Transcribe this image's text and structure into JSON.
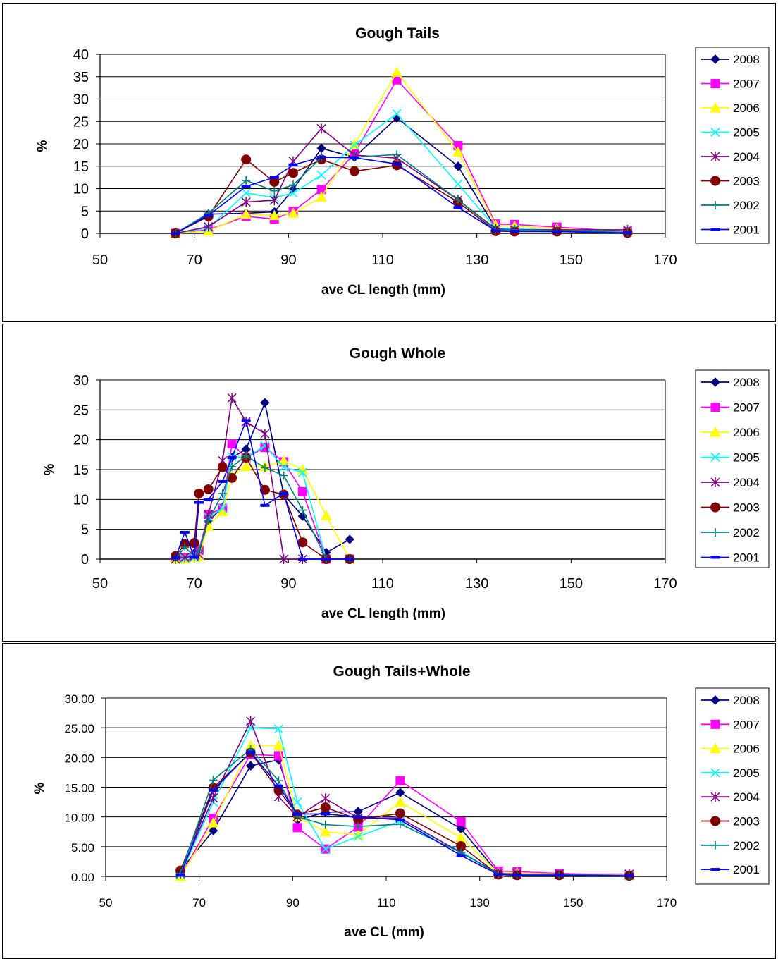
{
  "charts": [
    {
      "title": "Gough Tails",
      "xlabel": "ave CL length (mm)",
      "ylabel": "%",
      "yticks": [
        "0",
        "5",
        "10",
        "15",
        "20",
        "25",
        "30",
        "35",
        "40"
      ],
      "xticks": [
        "50",
        "70",
        "90",
        "110",
        "130",
        "150",
        "170"
      ]
    },
    {
      "title": "Gough Whole",
      "xlabel": "ave CL length (mm)",
      "ylabel": "%",
      "yticks": [
        "0",
        "5",
        "10",
        "15",
        "20",
        "25",
        "30"
      ],
      "xticks": [
        "50",
        "70",
        "90",
        "110",
        "130",
        "150",
        "170"
      ]
    },
    {
      "title": "Gough Tails+Whole",
      "xlabel": "ave CL (mm)",
      "ylabel": "%",
      "yticks": [
        "0.00",
        "5.00",
        "10.00",
        "15.00",
        "20.00",
        "25.00",
        "30.00"
      ],
      "xticks": [
        "50",
        "70",
        "90",
        "110",
        "130",
        "150",
        "170"
      ]
    }
  ],
  "legend": [
    "2008",
    "2007",
    "2006",
    "2005",
    "2004",
    "2003",
    "2002",
    "2001"
  ],
  "series_style": {
    "2008": {
      "color": "#000080",
      "marker": "diamond"
    },
    "2007": {
      "color": "#FF00FF",
      "marker": "square"
    },
    "2006": {
      "color": "#FFFF00",
      "marker": "triangle"
    },
    "2005": {
      "color": "#00FFFF",
      "marker": "x"
    },
    "2004": {
      "color": "#800080",
      "marker": "star"
    },
    "2003": {
      "color": "#800000",
      "marker": "circle"
    },
    "2002": {
      "color": "#008080",
      "marker": "plus"
    },
    "2001": {
      "color": "#0000FF",
      "marker": "dash"
    }
  },
  "chart_data": [
    {
      "type": "line",
      "title": "Gough Tails",
      "xlabel": "ave CL length (mm)",
      "ylabel": "%",
      "xlim": [
        50,
        170
      ],
      "ylim": [
        0,
        40
      ],
      "grid": "horizontal",
      "legend_position": "right",
      "series": [
        {
          "name": "2008",
          "x": [
            66,
            73,
            81,
            87,
            91,
            97,
            104,
            113,
            126,
            134,
            138,
            147,
            162
          ],
          "y": [
            0,
            4.3,
            4.5,
            4.8,
            9.8,
            19,
            17,
            25.8,
            15,
            1.2,
            0.9,
            0.8,
            0.3
          ]
        },
        {
          "name": "2007",
          "x": [
            66,
            73,
            81,
            87,
            91,
            97,
            104,
            113,
            126,
            134,
            138,
            147,
            162
          ],
          "y": [
            0,
            0.8,
            3.8,
            3.2,
            4.9,
            9.8,
            17.8,
            34.3,
            19.6,
            2.1,
            2.0,
            1.4,
            0.4
          ]
        },
        {
          "name": "2006",
          "x": [
            66,
            73,
            81,
            87,
            91,
            97,
            104,
            113,
            126,
            134,
            138,
            147,
            162
          ],
          "y": [
            0,
            0.5,
            4.3,
            4.0,
            4.5,
            8.1,
            19.8,
            36.0,
            18.2,
            1.8,
            1.6,
            1.1,
            0.3
          ]
        },
        {
          "name": "2005",
          "x": [
            66,
            73,
            81,
            87,
            91,
            97,
            104,
            113,
            126,
            134,
            138,
            147,
            162
          ],
          "y": [
            0,
            1.2,
            9.0,
            8.0,
            9.0,
            13.0,
            19.7,
            26.7,
            11.0,
            1.2,
            1.0,
            0.8,
            0.3
          ]
        },
        {
          "name": "2004",
          "x": [
            66,
            73,
            81,
            87,
            91,
            97,
            104,
            113,
            126,
            134,
            138,
            147,
            162
          ],
          "y": [
            0,
            1.5,
            7.0,
            7.4,
            16.1,
            23.4,
            17.5,
            16.8,
            7.5,
            1.0,
            0.8,
            0.8,
            0.8
          ]
        },
        {
          "name": "2003",
          "x": [
            66,
            73,
            81,
            87,
            91,
            97,
            104,
            113,
            126,
            134,
            138,
            147,
            162
          ],
          "y": [
            0,
            3.8,
            16.5,
            11.5,
            13.5,
            16.5,
            13.9,
            15.2,
            7.0,
            0.5,
            0.4,
            0.4,
            0.1
          ]
        },
        {
          "name": "2002",
          "x": [
            66,
            73,
            81,
            87,
            91,
            97,
            104,
            113,
            126,
            134,
            138,
            147,
            162
          ],
          "y": [
            0,
            4.5,
            11.8,
            9.5,
            10.8,
            17.0,
            17.0,
            17.6,
            7.5,
            0.8,
            0.8,
            0.6,
            0.2
          ]
        },
        {
          "name": "2001",
          "x": [
            66,
            73,
            81,
            87,
            91,
            97,
            104,
            113,
            126,
            134,
            138,
            147,
            162
          ],
          "y": [
            0,
            4.0,
            10.5,
            12.5,
            15.3,
            17.0,
            16.9,
            15.5,
            5.8,
            0.6,
            0.5,
            0.4,
            0.1
          ]
        }
      ]
    },
    {
      "type": "line",
      "title": "Gough Whole",
      "xlabel": "ave CL length (mm)",
      "ylabel": "%",
      "xlim": [
        50,
        170
      ],
      "ylim": [
        0,
        30
      ],
      "grid": "horizontal",
      "legend_position": "right",
      "series": [
        {
          "name": "2008",
          "x": [
            66,
            68,
            70,
            71,
            73,
            76,
            78,
            81,
            85,
            89,
            93,
            98,
            103
          ],
          "y": [
            0,
            0.2,
            1.0,
            1.2,
            6.3,
            8.7,
            17.0,
            18.4,
            26.2,
            10.8,
            7.2,
            1.1,
            3.3
          ]
        },
        {
          "name": "2007",
          "x": [
            66,
            68,
            70,
            71,
            73,
            76,
            78,
            81,
            85,
            89,
            93,
            98,
            103
          ],
          "y": [
            0,
            0.2,
            0.5,
            1.5,
            7.5,
            8.5,
            19.3,
            17.0,
            18.7,
            16.3,
            11.3,
            0,
            0
          ]
        },
        {
          "name": "2006",
          "x": [
            66,
            68,
            70,
            71,
            73,
            76,
            78,
            81,
            85,
            89,
            93,
            98,
            103
          ],
          "y": [
            0,
            0,
            0.3,
            0.5,
            5.5,
            8.0,
            14.0,
            15.5,
            15.5,
            16.5,
            15.0,
            7.3,
            0
          ]
        },
        {
          "name": "2005",
          "x": [
            66,
            68,
            70,
            71,
            73,
            76,
            78,
            81,
            85,
            89,
            93,
            98,
            103
          ],
          "y": [
            0,
            0.1,
            0.3,
            0.8,
            7.0,
            8.5,
            17.2,
            17.0,
            19.0,
            15.4,
            14.5,
            0,
            0
          ]
        },
        {
          "name": "2004",
          "x": [
            66,
            68,
            70,
            71,
            73,
            76,
            78,
            81,
            85,
            89,
            93,
            98,
            103
          ],
          "y": [
            0,
            0.3,
            0.5,
            0.8,
            7.5,
            16.5,
            27.0,
            23.0,
            21.0,
            0,
            0,
            0,
            0
          ]
        },
        {
          "name": "2003",
          "x": [
            66,
            68,
            70,
            71,
            73,
            76,
            78,
            81,
            85,
            89,
            93,
            98,
            103
          ],
          "y": [
            0.5,
            2.5,
            2.7,
            11.0,
            11.7,
            15.4,
            13.6,
            17.0,
            11.6,
            10.8,
            2.8,
            0,
            0
          ]
        },
        {
          "name": "2002",
          "x": [
            66,
            68,
            70,
            71,
            73,
            76,
            78,
            81,
            85,
            89,
            93,
            98,
            103
          ],
          "y": [
            0,
            2.0,
            0.5,
            1.5,
            6.5,
            11.0,
            15.5,
            17.3,
            15.3,
            14.0,
            8.2,
            0,
            0
          ]
        },
        {
          "name": "2001",
          "x": [
            66,
            68,
            70,
            71,
            73,
            76,
            78,
            81,
            85,
            89,
            93,
            98,
            103
          ],
          "y": [
            0.2,
            4.5,
            0.3,
            9.5,
            10.0,
            13.0,
            17.0,
            23.2,
            9.0,
            11.0,
            0,
            0,
            0
          ]
        }
      ]
    },
    {
      "type": "line",
      "title": "Gough Tails+Whole",
      "xlabel": "ave CL (mm)",
      "ylabel": "%",
      "xlim": [
        50,
        170
      ],
      "ylim": [
        0,
        30
      ],
      "grid": "horizontal",
      "legend_position": "right",
      "series": [
        {
          "name": "2008",
          "x": [
            66,
            73,
            81,
            87,
            91,
            97,
            104,
            113,
            126,
            134,
            138,
            147,
            162
          ],
          "y": [
            1.0,
            7.7,
            18.6,
            19.6,
            9.5,
            10.8,
            10.9,
            14.1,
            8.0,
            0.5,
            0.4,
            0.4,
            0.2
          ]
        },
        {
          "name": "2007",
          "x": [
            66,
            73,
            81,
            87,
            91,
            97,
            104,
            113,
            126,
            134,
            138,
            147,
            162
          ],
          "y": [
            0,
            9.8,
            20.5,
            20.3,
            8.2,
            4.6,
            8.3,
            16.1,
            9.2,
            0.9,
            0.8,
            0.5,
            0.2
          ]
        },
        {
          "name": "2006",
          "x": [
            66,
            73,
            81,
            87,
            91,
            97,
            104,
            113,
            126,
            134,
            138,
            147,
            162
          ],
          "y": [
            0,
            9.0,
            22.0,
            22.0,
            10.0,
            7.5,
            7.0,
            12.5,
            6.5,
            0.6,
            0.6,
            0.4,
            0.2
          ]
        },
        {
          "name": "2005",
          "x": [
            66,
            73,
            81,
            87,
            91,
            97,
            104,
            113,
            126,
            134,
            138,
            147,
            162
          ],
          "y": [
            0.3,
            12.5,
            25.0,
            24.8,
            12.5,
            4.6,
            6.7,
            9.3,
            4.2,
            0.4,
            0.3,
            0.3,
            0.1
          ]
        },
        {
          "name": "2004",
          "x": [
            66,
            73,
            81,
            87,
            91,
            97,
            104,
            113,
            126,
            134,
            138,
            147,
            162
          ],
          "y": [
            0.5,
            13.2,
            26.1,
            13.4,
            10.0,
            13.1,
            9.8,
            9.8,
            4.0,
            0.5,
            0.4,
            0.4,
            0.4
          ]
        },
        {
          "name": "2003",
          "x": [
            66,
            73,
            81,
            87,
            91,
            97,
            104,
            113,
            126,
            134,
            138,
            147,
            162
          ],
          "y": [
            1.0,
            14.9,
            20.8,
            14.5,
            10.4,
            11.6,
            9.6,
            10.6,
            5.1,
            0.3,
            0.2,
            0.2,
            0.1
          ]
        },
        {
          "name": "2002",
          "x": [
            66,
            73,
            81,
            87,
            91,
            97,
            104,
            113,
            126,
            134,
            138,
            147,
            162
          ],
          "y": [
            0.5,
            16.2,
            21.4,
            16.1,
            10.0,
            8.7,
            8.4,
            8.8,
            4.0,
            0.4,
            0.3,
            0.3,
            0.1
          ]
        },
        {
          "name": "2001",
          "x": [
            66,
            73,
            81,
            87,
            91,
            97,
            104,
            113,
            126,
            134,
            138,
            147,
            162
          ],
          "y": [
            0.2,
            14.5,
            20.9,
            15.2,
            10.5,
            10.5,
            10.0,
            9.5,
            3.5,
            0.3,
            0.2,
            0.2,
            0.1
          ]
        }
      ]
    }
  ]
}
